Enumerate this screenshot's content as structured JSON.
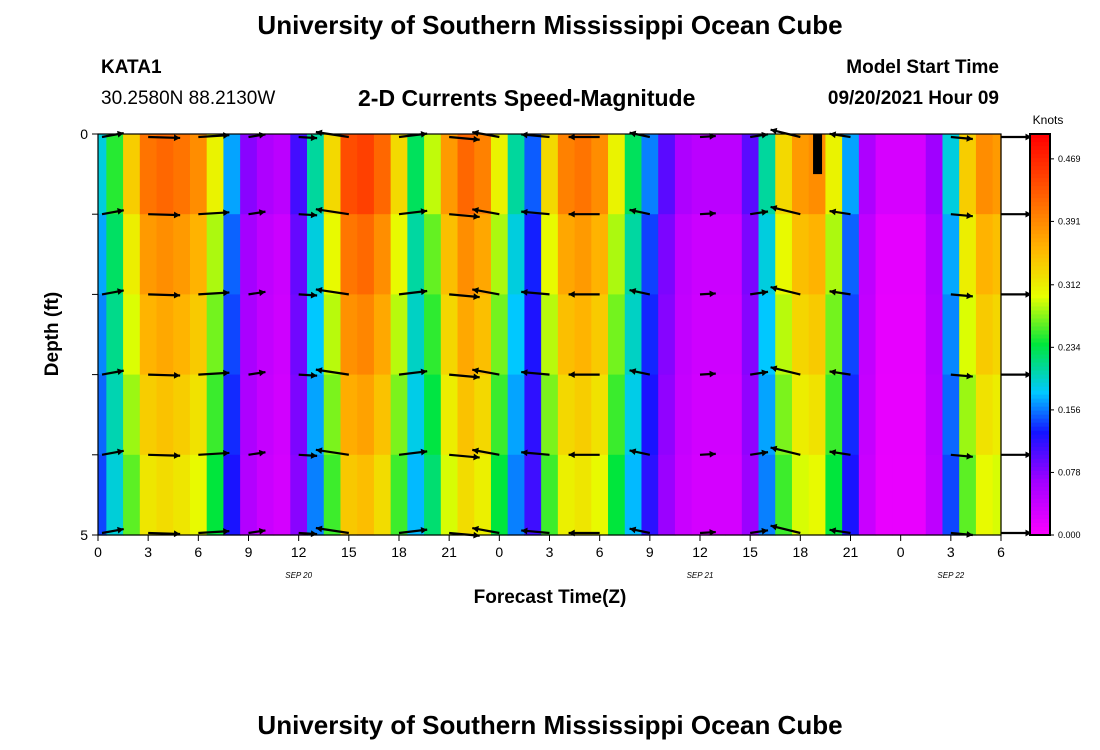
{
  "header": {
    "title": "University of Southern Mississippi Ocean Cube",
    "station": "KATA1",
    "coords": "30.2580N  88.2130W",
    "subtitle": "2-D Currents Speed-Magnitude",
    "model_start_label": "Model Start Time",
    "model_start_value": "09/20/2021 Hour 09"
  },
  "footer": {
    "title": "University of Southern Mississippi Ocean Cube"
  },
  "chart_data": {
    "type": "heatmap",
    "xlabel": "Forecast Time(Z)",
    "ylabel": "Depth (ft)",
    "xlim": [
      0,
      54
    ],
    "ylim": [
      0,
      5
    ],
    "x_tick_labels": [
      "0",
      "3",
      "6",
      "9",
      "12",
      "15",
      "18",
      "21",
      "0",
      "3",
      "6",
      "9",
      "12",
      "15",
      "18",
      "21",
      "0",
      "3",
      "6"
    ],
    "y_tick_labels": [
      "0",
      "5"
    ],
    "date_labels": [
      {
        "label": "SEP 20",
        "x_hour": 12
      },
      {
        "label": "SEP 21",
        "x_hour": 36
      },
      {
        "label": "SEP 22",
        "x_hour": 51
      }
    ],
    "colorbar": {
      "unit": "Knots",
      "range": [
        0,
        0.5
      ],
      "ticks": [
        "0.000",
        "0.078",
        "0.156",
        "0.234",
        "0.312",
        "0.391",
        "0.469"
      ]
    },
    "depth_levels": [
      0,
      1,
      2,
      3,
      4,
      5
    ],
    "speed_knots_by_hour": [
      0.18,
      0.24,
      0.33,
      0.4,
      0.41,
      0.4,
      0.38,
      0.3,
      0.16,
      0.07,
      0.05,
      0.04,
      0.1,
      0.2,
      0.32,
      0.43,
      0.44,
      0.41,
      0.32,
      0.22,
      0.28,
      0.37,
      0.41,
      0.39,
      0.3,
      0.2,
      0.14,
      0.32,
      0.39,
      0.4,
      0.38,
      0.3,
      0.22,
      0.15,
      0.09,
      0.05,
      0.04,
      0.04,
      0.04,
      0.09,
      0.2,
      0.32,
      0.37,
      0.38,
      0.3,
      0.16,
      0.05,
      0.02,
      0.02,
      0.02,
      0.06,
      0.18,
      0.33,
      0.38,
      0.37
    ],
    "missing_segment": {
      "x_hour": 43,
      "depth_from": 0,
      "depth_to": 0.5
    }
  }
}
